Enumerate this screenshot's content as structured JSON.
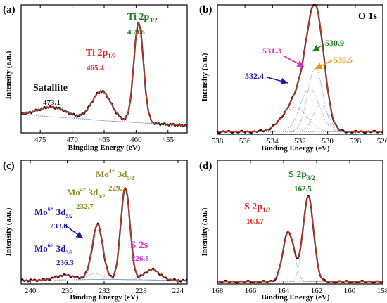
{
  "figure": {
    "axis_label_y": "Intensity (a.u.)"
  },
  "colors": {
    "data": "#111111",
    "fit": "#c0392b",
    "component": "#8a9ab8",
    "red_text": "#e0201c",
    "green_text": "#1c7d1c",
    "olive_text": "#8f8a1e",
    "blue_text": "#1a1aa6",
    "magenta_text": "#d12fd1",
    "orange_text": "#e89a17"
  },
  "chart_data": [
    {
      "panel": "(a)",
      "type": "line",
      "title": "",
      "xlabel": "Bingding Energy (eV)",
      "ylabel": "Intensity (a.u.)",
      "xlim": [
        478,
        452
      ],
      "ylim": [
        0,
        1.05
      ],
      "xticks": [
        475,
        470,
        465,
        460,
        455
      ],
      "baseline": [
        [
          478,
          0.15
        ],
        [
          470,
          0.12
        ],
        [
          465,
          0.1
        ],
        [
          452,
          0.06
        ]
      ],
      "peaks": [
        {
          "label": "Ti 2p1/2",
          "center": 465.4,
          "height": 0.24,
          "width": 1.5,
          "color": "red"
        },
        {
          "label": "Ti 2p3/2",
          "center": 459.6,
          "height": 0.82,
          "width": 0.75,
          "color": "green"
        },
        {
          "label": "Satallite",
          "center": 473.1,
          "height": 0.08,
          "width": 2.2,
          "color": "data"
        }
      ],
      "annotations": [
        {
          "main": "Ti 2p",
          "sub": "1/2",
          "value": "465.4",
          "color": "red"
        },
        {
          "main": "Ti 2p",
          "sub": "3/2",
          "value": "459.6",
          "color": "green"
        },
        {
          "main": "Satallite",
          "sub": "",
          "value": "473.1",
          "color": "data"
        }
      ]
    },
    {
      "panel": "(b)",
      "type": "line",
      "title": "O 1s",
      "xlabel": "Binding Energy (eV)",
      "ylabel": "Intensity (a.u.)",
      "xlim": [
        538,
        526
      ],
      "ylim": [
        0,
        1.05
      ],
      "xticks": [
        538,
        536,
        534,
        532,
        530,
        528,
        526
      ],
      "baseline": [
        [
          538,
          0.02
        ],
        [
          526,
          0.02
        ]
      ],
      "peaks": [
        {
          "label": "532.4",
          "center": 532.4,
          "height": 0.2,
          "width": 0.9,
          "color": "blue"
        },
        {
          "label": "531.3",
          "center": 531.3,
          "height": 0.35,
          "width": 0.7,
          "color": "magenta"
        },
        {
          "label": "530.9",
          "center": 530.9,
          "height": 0.52,
          "width": 0.55,
          "color": "green"
        },
        {
          "label": "530.5",
          "center": 530.5,
          "height": 0.22,
          "width": 0.55,
          "color": "orange"
        }
      ],
      "annotations": [
        {
          "main": "531.3",
          "value": "",
          "color": "magenta"
        },
        {
          "main": "530.9",
          "value": "",
          "color": "green"
        },
        {
          "main": "530.5",
          "value": "",
          "color": "orange"
        },
        {
          "main": "532.4",
          "value": "",
          "color": "blue"
        }
      ]
    },
    {
      "panel": "(c)",
      "type": "line",
      "title": "",
      "xlabel": "Binding Energy (eV)",
      "ylabel": "Intensity (a.u.)",
      "xlim": [
        241,
        223
      ],
      "ylim": [
        0,
        1.05
      ],
      "xticks": [
        240,
        236,
        232,
        228,
        224
      ],
      "baseline": [
        [
          241,
          0.03
        ],
        [
          232,
          0.04
        ],
        [
          223,
          0.03
        ]
      ],
      "peaks": [
        {
          "label": "Mo6+ 3d3/2",
          "center": 236.3,
          "height": 0.04,
          "width": 1.0,
          "color": "blue"
        },
        {
          "label": "Mo6+ 3d5/2",
          "center": 233.0,
          "height": 0.05,
          "width": 0.8,
          "color": "blue"
        },
        {
          "label": "Mo4+ 3d3/2",
          "center": 232.7,
          "height": 0.42,
          "width": 0.55,
          "color": "olive"
        },
        {
          "label": "Mo4+ 3d5/2",
          "center": 229.7,
          "height": 0.78,
          "width": 0.5,
          "color": "olive"
        },
        {
          "label": "S 2s",
          "center": 226.8,
          "height": 0.09,
          "width": 0.8,
          "color": "magenta"
        }
      ],
      "annotations": [
        {
          "main": "Mo",
          "sup": "4+",
          "orb": " 3d",
          "sub": "5/2",
          "value": "229.7",
          "color": "olive"
        },
        {
          "main": "Mo",
          "sup": "4+",
          "orb": " 3d",
          "sub": "3/2",
          "value": "232.7",
          "color": "olive"
        },
        {
          "main": "Mo",
          "sup": "6+",
          "orb": " 3d",
          "sub": "5/2",
          "value": "233.0",
          "color": "blue"
        },
        {
          "main": "Mo",
          "sup": "6+",
          "orb": " 3d",
          "sub": "3/2",
          "value": "236.3",
          "color": "blue"
        },
        {
          "main": "S 2s",
          "sup": "",
          "orb": "",
          "sub": "",
          "value": "226.8",
          "color": "magenta"
        }
      ]
    },
    {
      "panel": "(d)",
      "type": "line",
      "title": "",
      "xlabel": "Binding Energy (eV)",
      "ylabel": "Intensity (a.u.)",
      "xlim": [
        168,
        158
      ],
      "ylim": [
        0,
        1.05
      ],
      "xticks": [
        168,
        166,
        164,
        162,
        160,
        158
      ],
      "baseline": [
        [
          168,
          0.02
        ],
        [
          158,
          0.02
        ]
      ],
      "peaks": [
        {
          "label": "S 2p1/2",
          "center": 163.7,
          "height": 0.42,
          "width": 0.34,
          "color": "red"
        },
        {
          "label": "S 2p3/2",
          "center": 162.5,
          "height": 0.72,
          "width": 0.32,
          "color": "green"
        }
      ],
      "annotations": [
        {
          "main": "S 2p",
          "sub": "3/2",
          "value": "162.5",
          "color": "green"
        },
        {
          "main": "S 2p",
          "sub": "1/2",
          "value": "163.7",
          "color": "red"
        }
      ]
    }
  ]
}
